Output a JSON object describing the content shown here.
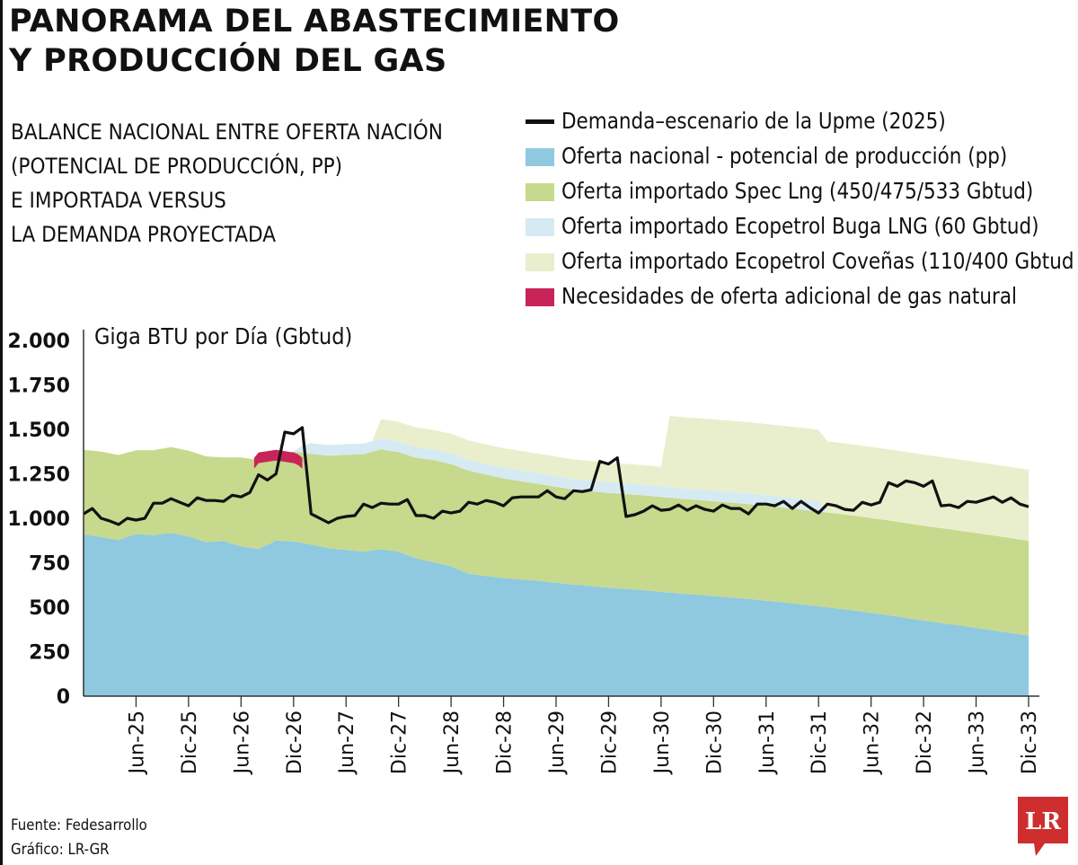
{
  "title_lines": [
    "PANORAMA DEL ABASTECIMIENTO",
    "Y PRODUCCIÓN DEL GAS"
  ],
  "subtitle_lines": [
    "BALANCE NACIONAL ENTRE OFERTA NACIÓN",
    "(POTENCIAL DE PRODUCCIÓN, PP)",
    "E IMPORTADA VERSUS",
    "LA DEMANDA PROYECTADA"
  ],
  "legend": [
    {
      "label": "Demanda–escenario de la Upme (2025)",
      "color": "#111111",
      "kind": "line"
    },
    {
      "label": "Oferta nacional - potencial de producción (pp)",
      "color": "#8fc9df",
      "kind": "area"
    },
    {
      "label": "Oferta importado Spec Lng (450/475/533 Gbtud)",
      "color": "#c6d98d",
      "kind": "area"
    },
    {
      "label": "Oferta importado Ecopetrol Buga LNG (60 Gbtud)",
      "color": "#d6eaf3",
      "kind": "area"
    },
    {
      "label": "Oferta importado Ecopetrol Coveñas (110/400 Gbtud",
      "color": "#e9efcc",
      "kind": "area"
    },
    {
      "label": "Necesidades de oferta adicional de gas natural",
      "color": "#c8245a",
      "kind": "area"
    }
  ],
  "footer": {
    "source": "Fuente: Fedesarrollo",
    "graphic": "Gráfico: LR-GR"
  },
  "logo_text": "LR",
  "chart_data": {
    "type": "area",
    "ylabel": "Giga BTU por Día (Gbtud)",
    "ylim": [
      0,
      2000
    ],
    "y_ticks": [
      0,
      250,
      500,
      750,
      1000,
      1250,
      1500,
      1750,
      2000
    ],
    "y_tick_labels": [
      "0",
      "250",
      "500",
      "750",
      "1.000",
      "1.250",
      "1.500",
      "1.750",
      "2.000"
    ],
    "x_start_month_index": 0,
    "x_end_month_index": 108,
    "x_ticks": [
      {
        "label": "Jun-25",
        "month_index": 6
      },
      {
        "label": "Dic-25",
        "month_index": 12
      },
      {
        "label": "Jun-26",
        "month_index": 18
      },
      {
        "label": "Dic-26",
        "month_index": 24
      },
      {
        "label": "Jun-27",
        "month_index": 30
      },
      {
        "label": "Dic-27",
        "month_index": 36
      },
      {
        "label": "Jun-28",
        "month_index": 42
      },
      {
        "label": "Dic-28",
        "month_index": 48
      },
      {
        "label": "Jun-29",
        "month_index": 54
      },
      {
        "label": "Dic-29",
        "month_index": 60
      },
      {
        "label": "Jun-30",
        "month_index": 66
      },
      {
        "label": "Dic-30",
        "month_index": 72
      },
      {
        "label": "Jun-31",
        "month_index": 78
      },
      {
        "label": "Dic-31",
        "month_index": 84
      },
      {
        "label": "Jun-32",
        "month_index": 90
      },
      {
        "label": "Dic-32",
        "month_index": 96
      },
      {
        "label": "Jun-33",
        "month_index": 102
      },
      {
        "label": "Dic-33",
        "month_index": 108
      }
    ],
    "series": [
      {
        "name": "Oferta nacional - potencial de producción (pp)",
        "color": "#8fc9df",
        "kind": "stack",
        "points": [
          [
            0,
            910
          ],
          [
            2,
            895
          ],
          [
            4,
            878
          ],
          [
            6,
            912
          ],
          [
            8,
            905
          ],
          [
            10,
            918
          ],
          [
            12,
            898
          ],
          [
            14,
            866
          ],
          [
            16,
            872
          ],
          [
            18,
            842
          ],
          [
            20,
            828
          ],
          [
            22,
            874
          ],
          [
            24,
            870
          ],
          [
            26,
            852
          ],
          [
            28,
            832
          ],
          [
            30,
            822
          ],
          [
            32,
            812
          ],
          [
            34,
            826
          ],
          [
            36,
            812
          ],
          [
            38,
            775
          ],
          [
            40,
            752
          ],
          [
            42,
            730
          ],
          [
            44,
            688
          ],
          [
            46,
            676
          ],
          [
            48,
            664
          ],
          [
            52,
            648
          ],
          [
            56,
            628
          ],
          [
            60,
            610
          ],
          [
            64,
            596
          ],
          [
            68,
            578
          ],
          [
            72,
            563
          ],
          [
            76,
            547
          ],
          [
            80,
            527
          ],
          [
            84,
            505
          ],
          [
            88,
            482
          ],
          [
            92,
            455
          ],
          [
            96,
            425
          ],
          [
            100,
            398
          ],
          [
            104,
            370
          ],
          [
            106,
            355
          ],
          [
            108,
            340
          ]
        ]
      },
      {
        "name": "Oferta importado Spec Lng (450/475/533 Gbtud)",
        "color": "#c6d98d",
        "kind": "stack",
        "points": [
          [
            0,
            475
          ],
          [
            2,
            480
          ],
          [
            4,
            478
          ],
          [
            6,
            470
          ],
          [
            8,
            478
          ],
          [
            10,
            482
          ],
          [
            12,
            482
          ],
          [
            14,
            482
          ],
          [
            16,
            470
          ],
          [
            18,
            500
          ],
          [
            20,
            500
          ],
          [
            22,
            470
          ],
          [
            24,
            505
          ],
          [
            26,
            510
          ],
          [
            28,
            520
          ],
          [
            30,
            535
          ],
          [
            32,
            548
          ],
          [
            34,
            562
          ],
          [
            36,
            560
          ],
          [
            38,
            565
          ],
          [
            40,
            575
          ],
          [
            42,
            575
          ],
          [
            44,
            580
          ],
          [
            46,
            570
          ],
          [
            48,
            560
          ],
          [
            52,
            545
          ],
          [
            56,
            533
          ],
          [
            60,
            533
          ],
          [
            64,
            533
          ],
          [
            68,
            533
          ],
          [
            72,
            533
          ],
          [
            76,
            533
          ],
          [
            80,
            533
          ],
          [
            84,
            533
          ],
          [
            88,
            533
          ],
          [
            92,
            533
          ],
          [
            96,
            533
          ],
          [
            100,
            533
          ],
          [
            104,
            533
          ],
          [
            106,
            533
          ],
          [
            108,
            533
          ]
        ]
      },
      {
        "name": "Oferta importado Ecopetrol Buga LNG (60 Gbtud)",
        "color": "#d6eaf3",
        "kind": "stack",
        "points": [
          [
            0,
            0
          ],
          [
            24,
            0
          ],
          [
            25,
            40
          ],
          [
            26,
            60
          ],
          [
            36,
            60
          ],
          [
            38,
            60
          ],
          [
            48,
            60
          ],
          [
            56,
            60
          ],
          [
            60,
            60
          ],
          [
            68,
            60
          ],
          [
            76,
            60
          ],
          [
            84,
            60
          ],
          [
            85,
            0
          ],
          [
            108,
            0
          ]
        ]
      },
      {
        "name": "Oferta importado Ecopetrol Coveñas (110/400 Gbtud",
        "color": "#e9efcc",
        "kind": "stack",
        "points": [
          [
            0,
            0
          ],
          [
            33,
            0
          ],
          [
            34,
            110
          ],
          [
            66,
            110
          ],
          [
            67,
            400
          ],
          [
            108,
            400
          ]
        ]
      },
      {
        "name": "Necesidades de oferta adicional de gas natural",
        "color": "#c8245a",
        "kind": "gap",
        "points": [
          [
            19.5,
            1340
          ],
          [
            20,
            1370
          ],
          [
            22,
            1385
          ],
          [
            24,
            1370
          ],
          [
            24.5,
            1360
          ],
          [
            25,
            1340
          ]
        ]
      },
      {
        "name": "Demanda–escenario de la Upme (2025)",
        "color": "#111111",
        "kind": "line",
        "points": [
          [
            0,
            1025
          ],
          [
            1,
            1055
          ],
          [
            2,
            1000
          ],
          [
            3,
            985
          ],
          [
            4,
            965
          ],
          [
            5,
            1000
          ],
          [
            6,
            990
          ],
          [
            7,
            1000
          ],
          [
            8,
            1085
          ],
          [
            9,
            1085
          ],
          [
            10,
            1110
          ],
          [
            11,
            1090
          ],
          [
            12,
            1070
          ],
          [
            13,
            1115
          ],
          [
            14,
            1100
          ],
          [
            15,
            1100
          ],
          [
            16,
            1095
          ],
          [
            17,
            1130
          ],
          [
            18,
            1120
          ],
          [
            19,
            1145
          ],
          [
            20,
            1245
          ],
          [
            21,
            1215
          ],
          [
            22,
            1250
          ],
          [
            23,
            1485
          ],
          [
            24,
            1475
          ],
          [
            25,
            1510
          ],
          [
            26,
            1025
          ],
          [
            27,
            1000
          ],
          [
            28,
            975
          ],
          [
            29,
            1000
          ],
          [
            30,
            1010
          ],
          [
            31,
            1015
          ],
          [
            32,
            1080
          ],
          [
            33,
            1060
          ],
          [
            34,
            1085
          ],
          [
            35,
            1080
          ],
          [
            36,
            1080
          ],
          [
            37,
            1105
          ],
          [
            38,
            1015
          ],
          [
            39,
            1015
          ],
          [
            40,
            1000
          ],
          [
            41,
            1040
          ],
          [
            42,
            1030
          ],
          [
            43,
            1040
          ],
          [
            44,
            1090
          ],
          [
            45,
            1080
          ],
          [
            46,
            1100
          ],
          [
            47,
            1090
          ],
          [
            48,
            1070
          ],
          [
            49,
            1115
          ],
          [
            50,
            1120
          ],
          [
            51,
            1120
          ],
          [
            52,
            1120
          ],
          [
            53,
            1155
          ],
          [
            54,
            1120
          ],
          [
            55,
            1110
          ],
          [
            56,
            1155
          ],
          [
            57,
            1150
          ],
          [
            58,
            1160
          ],
          [
            59,
            1320
          ],
          [
            60,
            1305
          ],
          [
            61,
            1340
          ],
          [
            62,
            1010
          ],
          [
            63,
            1020
          ],
          [
            64,
            1040
          ],
          [
            65,
            1070
          ],
          [
            66,
            1045
          ],
          [
            67,
            1050
          ],
          [
            68,
            1075
          ],
          [
            69,
            1045
          ],
          [
            70,
            1070
          ],
          [
            71,
            1050
          ],
          [
            72,
            1040
          ],
          [
            73,
            1075
          ],
          [
            74,
            1055
          ],
          [
            75,
            1055
          ],
          [
            76,
            1025
          ],
          [
            77,
            1080
          ],
          [
            78,
            1080
          ],
          [
            79,
            1070
          ],
          [
            80,
            1095
          ],
          [
            81,
            1055
          ],
          [
            82,
            1095
          ],
          [
            83,
            1060
          ],
          [
            84,
            1030
          ],
          [
            85,
            1080
          ],
          [
            86,
            1070
          ],
          [
            87,
            1050
          ],
          [
            88,
            1045
          ],
          [
            89,
            1090
          ],
          [
            90,
            1075
          ],
          [
            91,
            1090
          ],
          [
            92,
            1200
          ],
          [
            93,
            1180
          ],
          [
            94,
            1210
          ],
          [
            95,
            1200
          ],
          [
            96,
            1180
          ],
          [
            97,
            1210
          ],
          [
            98,
            1070
          ],
          [
            99,
            1075
          ],
          [
            100,
            1060
          ],
          [
            101,
            1095
          ],
          [
            102,
            1090
          ],
          [
            103,
            1105
          ],
          [
            104,
            1120
          ],
          [
            105,
            1090
          ],
          [
            106,
            1115
          ],
          [
            107,
            1080
          ],
          [
            108,
            1065
          ]
        ]
      }
    ]
  }
}
